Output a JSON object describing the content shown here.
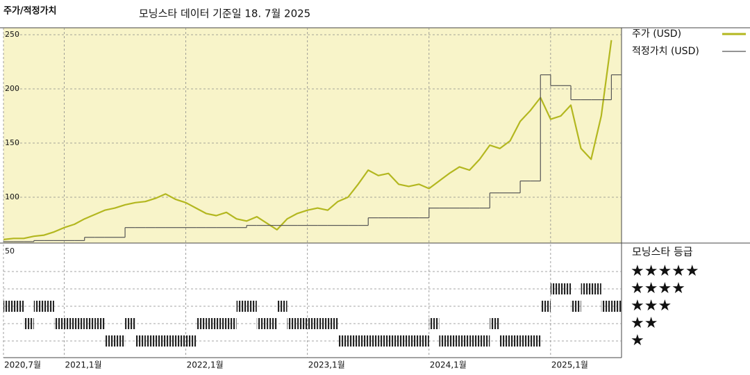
{
  "chart_data": [
    {
      "type": "line",
      "title": "주가/적정가치",
      "subtitle": "모닝스타 데이터 기준일 18. 7월 2025",
      "x": [
        "2020-07",
        "2020-08",
        "2020-09",
        "2020-10",
        "2020-11",
        "2020-12",
        "2021-01",
        "2021-02",
        "2021-03",
        "2021-04",
        "2021-05",
        "2021-06",
        "2021-07",
        "2021-08",
        "2021-09",
        "2021-10",
        "2021-11",
        "2021-12",
        "2022-01",
        "2022-02",
        "2022-03",
        "2022-04",
        "2022-05",
        "2022-06",
        "2022-07",
        "2022-08",
        "2022-09",
        "2022-10",
        "2022-11",
        "2022-12",
        "2023-01",
        "2023-02",
        "2023-03",
        "2023-04",
        "2023-05",
        "2023-06",
        "2023-07",
        "2023-08",
        "2023-09",
        "2023-10",
        "2023-11",
        "2023-12",
        "2024-01",
        "2024-02",
        "2024-03",
        "2024-04",
        "2024-05",
        "2024-06",
        "2024-07",
        "2024-08",
        "2024-09",
        "2024-10",
        "2024-11",
        "2024-12",
        "2025-01",
        "2025-02",
        "2025-03",
        "2025-04",
        "2025-05",
        "2025-06",
        "2025-07"
      ],
      "series": [
        {
          "name": "주가 (USD)",
          "color": "#b3b71f",
          "values": [
            61,
            62,
            62,
            64,
            65,
            68,
            72,
            75,
            80,
            84,
            88,
            90,
            93,
            95,
            96,
            99,
            103,
            98,
            95,
            90,
            85,
            83,
            86,
            80,
            78,
            82,
            76,
            70,
            80,
            85,
            88,
            90,
            88,
            96,
            100,
            112,
            125,
            120,
            122,
            112,
            110,
            112,
            108,
            115,
            122,
            128,
            125,
            135,
            148,
            145,
            152,
            170,
            180,
            192,
            172,
            175,
            185,
            145,
            135,
            175,
            245
          ]
        },
        {
          "name": "적정가치 (USD)",
          "color": "#555555",
          "step": true,
          "values": [
            59,
            59,
            59,
            60,
            60,
            60,
            60,
            60,
            63,
            63,
            63,
            63,
            72,
            72,
            72,
            72,
            72,
            72,
            72,
            72,
            72,
            72,
            72,
            72,
            74,
            74,
            74,
            74,
            74,
            74,
            74,
            74,
            74,
            74,
            74,
            74,
            81,
            81,
            81,
            81,
            81,
            81,
            90,
            90,
            90,
            90,
            90,
            90,
            104,
            104,
            104,
            115,
            115,
            213,
            203,
            203,
            190,
            190,
            190,
            190,
            213
          ]
        }
      ],
      "xlim": [
        "2020-07",
        "2025-08"
      ],
      "xticks": [
        {
          "value": "2020-07",
          "label": "2020,7월"
        },
        {
          "value": "2021-01",
          "label": "2021,1월"
        },
        {
          "value": "2022-01",
          "label": "2022,1월"
        },
        {
          "value": "2023-01",
          "label": "2023,1월"
        },
        {
          "value": "2024-01",
          "label": "2024,1월"
        },
        {
          "value": "2025-01",
          "label": "2025,1월"
        }
      ],
      "ylim": [
        57.7,
        256.4
      ],
      "yticks": [
        50,
        100,
        150,
        200,
        250
      ],
      "grid": true,
      "background": "#f8f4c9"
    },
    {
      "type": "rating",
      "title": "모닝스타 등급",
      "x": [
        "2020-07",
        "2020-08",
        "2020-09",
        "2020-10",
        "2020-11",
        "2020-12",
        "2021-01",
        "2021-02",
        "2021-03",
        "2021-04",
        "2021-05",
        "2021-06",
        "2021-07",
        "2021-08",
        "2021-09",
        "2021-10",
        "2021-11",
        "2021-12",
        "2022-01",
        "2022-02",
        "2022-03",
        "2022-04",
        "2022-05",
        "2022-06",
        "2022-07",
        "2022-08",
        "2022-09",
        "2022-10",
        "2022-11",
        "2022-12",
        "2023-01",
        "2023-02",
        "2023-03",
        "2023-04",
        "2023-05",
        "2023-06",
        "2023-07",
        "2023-08",
        "2023-09",
        "2023-10",
        "2023-11",
        "2023-12",
        "2024-01",
        "2024-02",
        "2024-03",
        "2024-04",
        "2024-05",
        "2024-06",
        "2024-07",
        "2024-08",
        "2024-09",
        "2024-10",
        "2024-11",
        "2024-12",
        "2025-01",
        "2025-02",
        "2025-03",
        "2025-04",
        "2025-05",
        "2025-06",
        "2025-07"
      ],
      "categories": [
        "★",
        "★★",
        "★★★",
        "★★★★",
        "★★★★★"
      ],
      "values": [
        3,
        3,
        2,
        3,
        3,
        2,
        2,
        2,
        2,
        2,
        1,
        1,
        2,
        1,
        1,
        1,
        1,
        1,
        1,
        2,
        2,
        2,
        2,
        3,
        3,
        2,
        2,
        3,
        2,
        2,
        2,
        2,
        2,
        1,
        1,
        1,
        1,
        1,
        1,
        1,
        1,
        1,
        2,
        1,
        1,
        1,
        1,
        1,
        2,
        1,
        1,
        1,
        1,
        3,
        4,
        4,
        3,
        4,
        4,
        3,
        3
      ],
      "color": "#222222"
    }
  ]
}
